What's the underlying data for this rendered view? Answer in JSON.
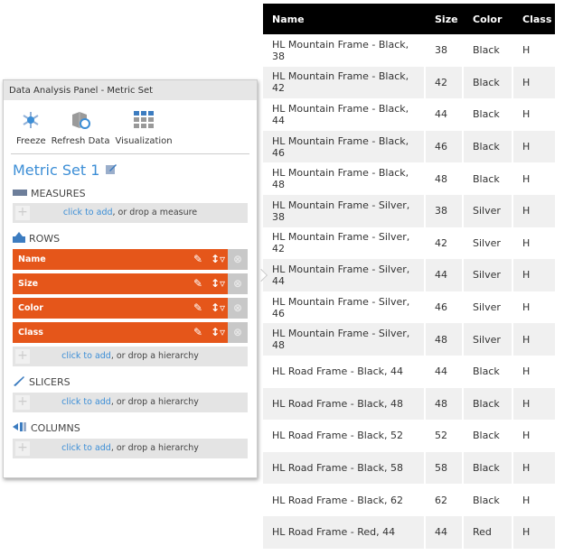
{
  "table": {
    "headers": [
      "Name",
      "Size",
      "Color",
      "Class"
    ],
    "rows": [
      [
        "HL Mountain Frame - Black, 38",
        "38",
        "Black",
        "H"
      ],
      [
        "HL Mountain Frame - Black, 42",
        "42",
        "Black",
        "H"
      ],
      [
        "HL Mountain Frame - Black, 44",
        "44",
        "Black",
        "H"
      ],
      [
        "HL Mountain Frame - Black, 46",
        "46",
        "Black",
        "H"
      ],
      [
        "HL Mountain Frame - Black, 48",
        "48",
        "Black",
        "H"
      ],
      [
        "HL Mountain Frame - Silver, 38",
        "38",
        "Silver",
        "H"
      ],
      [
        "HL Mountain Frame - Silver, 42",
        "42",
        "Silver",
        "H"
      ],
      [
        "HL Mountain Frame - Silver, 44",
        "44",
        "Silver",
        "H"
      ],
      [
        "HL Mountain Frame - Silver, 46",
        "46",
        "Silver",
        "H"
      ],
      [
        "HL Mountain Frame - Silver, 48",
        "48",
        "Silver",
        "H"
      ],
      [
        "HL Road Frame - Black, 44",
        "44",
        "Black",
        "H"
      ],
      [
        "HL Road Frame - Black, 48",
        "48",
        "Black",
        "H"
      ],
      [
        "HL Road Frame - Black, 52",
        "52",
        "Black",
        "H"
      ],
      [
        "HL Road Frame - Black, 58",
        "58",
        "Black",
        "H"
      ],
      [
        "HL Road Frame - Black, 62",
        "62",
        "Black",
        "H"
      ],
      [
        "HL Road Frame - Red, 44",
        "44",
        "Red",
        "H"
      ]
    ]
  },
  "panel": {
    "title": "Data Analysis Panel - Metric Set",
    "tools": [
      {
        "label": "Freeze",
        "icon": "snowflake-icon"
      },
      {
        "label": "Refresh Data",
        "icon": "refresh-cube-icon"
      },
      {
        "label": "Visualization",
        "icon": "grid-icon"
      }
    ],
    "metric_set_name": "Metric Set 1",
    "measures": {
      "label": "MEASURES",
      "add_link": "click to add",
      "add_rest": ", or drop a measure"
    },
    "rows": {
      "label": "ROWS",
      "items": [
        "Name",
        "Size",
        "Color",
        "Class"
      ],
      "add_link": "click to add",
      "add_rest": ", or drop a hierarchy"
    },
    "slicers": {
      "label": "SLICERS",
      "add_link": "click to add",
      "add_rest": ", or drop a hierarchy"
    },
    "columns": {
      "label": "COLUMNS",
      "add_link": "click to add",
      "add_rest": ", or drop a hierarchy"
    },
    "accent": "#e5561a",
    "link_color": "#3c8ed6"
  }
}
